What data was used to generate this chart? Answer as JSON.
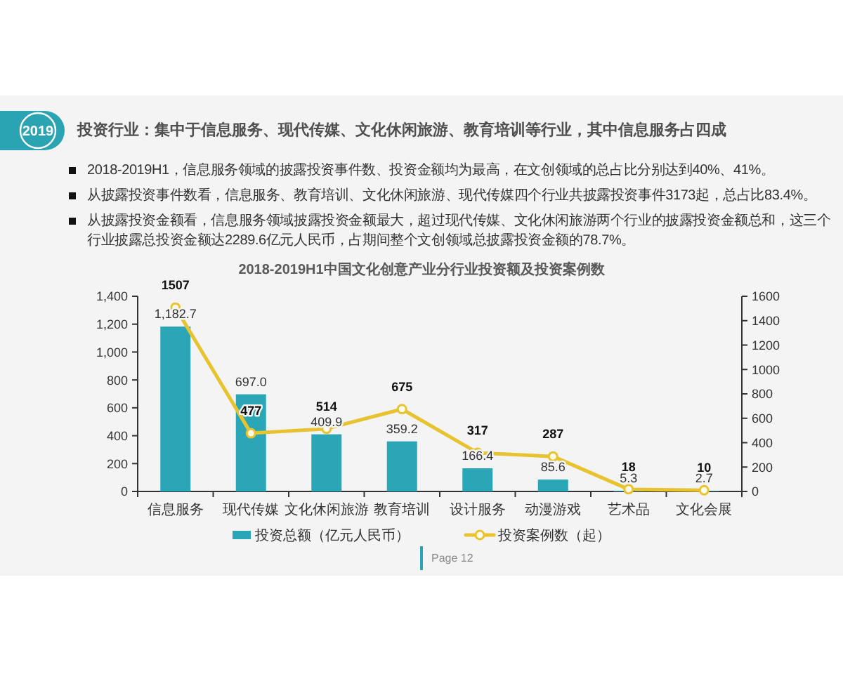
{
  "chart_data": {
    "type": "bar",
    "title": "投资行业：集中于信息服务、现代传媒、文化休闲旅游、教育培训等行业，其中信息服务占四成",
    "subtitle": "2018-2019H1中国文化创意产业分行业投资额及投资案例数",
    "annotations": [
      "2019",
      "2018-2019H1，信息服务领域的披露投资事件数、投资金额均为最高，在文创领域的总占比分别达到40%、41%。",
      "从披露投资事件数看，信息服务、教育培训、文化休闲旅游、现代传媒四个行业共披露投资事件3173起，总占比83.4%。",
      "从披露投资金额看，信息服务领域披露投资金额最大，超过现代传媒、文化休闲旅游两个行业的披露投资金额总和，这三个行业披露总投资金额达2289.6亿元人民币，占期间整个文创领域总披露投资金额的78.7%。",
      "Page 12"
    ],
    "categories": [
      "信息服务",
      "现代传媒",
      "文化休闲旅游",
      "教育培训",
      "设计服务",
      "动漫游戏",
      "艺术品",
      "文化会展"
    ],
    "series": [
      {
        "name": "投资总额（亿元人民币）",
        "color": "#2ba6b6",
        "values": [
          1182.7,
          697.0,
          409.9,
          359.2,
          166.4,
          85.6,
          5.3,
          2.7
        ],
        "value_labels": [
          "1,182.7",
          "697.0",
          "409.9",
          "359.2",
          "166.4",
          "85.6",
          "5.3",
          "2.7"
        ]
      },
      {
        "name": "投资案例数（起）",
        "type": "line",
        "axis": "y2",
        "color": "#e8c330",
        "values": [
          1507,
          477,
          514,
          675,
          317,
          287,
          18,
          10
        ],
        "value_labels": [
          "1507",
          "477",
          "514",
          "675",
          "317",
          "287",
          "18",
          "10"
        ]
      }
    ],
    "ylim": [
      0,
      1400
    ],
    "yticks": [
      0,
      200,
      400,
      600,
      800,
      {
        "value": 1000,
        "label": "1,000"
      },
      {
        "value": 1200,
        "label": "1,200"
      },
      {
        "value": 1400,
        "label": "1,400"
      }
    ],
    "y2lim": [
      0,
      1600
    ],
    "y2ticks": [
      0,
      200,
      400,
      600,
      800,
      1000,
      1200,
      1400,
      1600
    ],
    "legend": "bottom",
    "marker": "circle"
  }
}
